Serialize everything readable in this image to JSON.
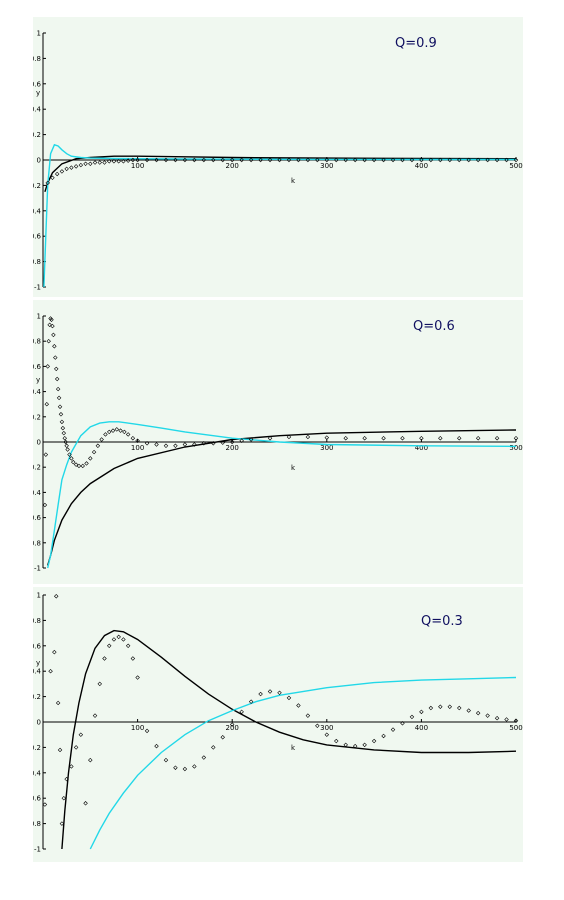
{
  "chart_data": [
    {
      "type": "line",
      "label": "Q=0.9",
      "xlabel": "k",
      "ylabel": "y",
      "xlim": [
        0,
        500
      ],
      "ylim": [
        -1,
        1
      ],
      "xticks": [
        "100",
        "200",
        "300",
        "400",
        "500"
      ],
      "yticks": [
        "1",
        "0.8",
        "0.6",
        "0.4",
        "0.2",
        "0",
        "-0.2",
        "-0.4",
        "-0.6",
        "-0.8",
        "-1"
      ],
      "series": [
        {
          "style": "solid",
          "color": "#000000",
          "x": [
            2,
            5,
            10,
            20,
            35,
            50,
            75,
            100,
            150,
            200,
            300,
            400,
            500
          ],
          "y": [
            -0.25,
            -0.18,
            -0.1,
            -0.03,
            0.01,
            0.02,
            0.03,
            0.03,
            0.025,
            0.02,
            0.015,
            0.012,
            0.01
          ]
        },
        {
          "style": "solid",
          "color": "#22d8e8",
          "x": [
            1,
            3,
            5,
            8,
            12,
            16,
            20,
            25,
            30,
            40,
            50,
            75,
            100,
            150,
            200,
            300,
            400,
            500
          ],
          "y": [
            -1,
            -0.6,
            -0.2,
            0.05,
            0.12,
            0.11,
            0.08,
            0.05,
            0.03,
            0.02,
            0.015,
            0.012,
            0.01,
            0.008,
            0.006,
            0.005,
            0.004,
            0.004
          ]
        },
        {
          "style": "points",
          "color": "#000000",
          "x": [
            5,
            10,
            15,
            20,
            25,
            30,
            35,
            40,
            45,
            50,
            55,
            60,
            65,
            70,
            75,
            80,
            85,
            90,
            95,
            100,
            110,
            120,
            130,
            140,
            150,
            160,
            170,
            180,
            190,
            200,
            210,
            220,
            230,
            240,
            250,
            260,
            270,
            280,
            290,
            300,
            310,
            320,
            330,
            340,
            350,
            360,
            370,
            380,
            390,
            400,
            410,
            420,
            430,
            440,
            450,
            460,
            470,
            480,
            490,
            500
          ],
          "y": [
            -0.18,
            -0.14,
            -0.11,
            -0.09,
            -0.07,
            -0.06,
            -0.05,
            -0.04,
            -0.03,
            -0.03,
            -0.02,
            -0.02,
            -0.02,
            -0.01,
            -0.01,
            -0.01,
            -0.01,
            -0.005,
            0,
            0,
            0,
            0,
            0,
            0,
            0,
            0,
            0,
            0,
            0,
            0,
            0,
            0,
            0,
            0,
            0,
            0,
            0,
            0,
            0,
            0,
            0,
            0,
            0,
            0,
            0,
            0,
            0,
            0,
            0,
            0,
            0,
            0,
            0,
            0,
            0,
            0,
            0,
            0,
            0,
            0
          ]
        }
      ]
    },
    {
      "type": "line",
      "label": "Q=0.6",
      "xlabel": "k",
      "ylabel": "y",
      "xlim": [
        0,
        500
      ],
      "ylim": [
        -1,
        1
      ],
      "xticks": [
        "100",
        "200",
        "300",
        "400",
        "500"
      ],
      "yticks": [
        "1",
        "0.8",
        "0.6",
        "0.4",
        "0.2",
        "0",
        "-0.2",
        "-0.4",
        "-0.6",
        "-0.8",
        "-1"
      ],
      "series": [
        {
          "style": "solid",
          "color": "#000000",
          "x": [
            5,
            8,
            12,
            20,
            30,
            40,
            50,
            75,
            100,
            150,
            200,
            250,
            300,
            400,
            500
          ],
          "y": [
            -0.98,
            -0.9,
            -0.78,
            -0.62,
            -0.49,
            -0.4,
            -0.33,
            -0.21,
            -0.13,
            -0.04,
            0.02,
            0.05,
            0.07,
            0.085,
            0.095
          ]
        },
        {
          "style": "solid",
          "color": "#22d8e8",
          "x": [
            5,
            8,
            12,
            16,
            20,
            25,
            30,
            40,
            50,
            60,
            70,
            80,
            100,
            125,
            150,
            200,
            250,
            300,
            400,
            500
          ],
          "y": [
            -1,
            -0.9,
            -0.7,
            -0.5,
            -0.3,
            -0.18,
            -0.08,
            0.05,
            0.12,
            0.15,
            0.16,
            0.16,
            0.14,
            0.11,
            0.08,
            0.03,
            0,
            -0.02,
            -0.03,
            -0.035
          ]
        },
        {
          "style": "points",
          "color": "#000000",
          "x": [
            2,
            3,
            4,
            5,
            6,
            7,
            8,
            9,
            10,
            11,
            12,
            13,
            14,
            15,
            16,
            17,
            18,
            19,
            20,
            21,
            22,
            23,
            24,
            25,
            26,
            28,
            30,
            32,
            35,
            38,
            42,
            46,
            50,
            54,
            58,
            62,
            66,
            70,
            74,
            78,
            82,
            86,
            90,
            95,
            100,
            110,
            120,
            130,
            140,
            150,
            160,
            170,
            180,
            190,
            200,
            210,
            220,
            240,
            260,
            280,
            300,
            320,
            340,
            360,
            380,
            400,
            420,
            440,
            460,
            480,
            500
          ],
          "y": [
            -0.5,
            -0.1,
            0.3,
            0.6,
            0.8,
            0.93,
            0.98,
            0.97,
            0.92,
            0.85,
            0.76,
            0.67,
            0.58,
            0.5,
            0.42,
            0.35,
            0.28,
            0.22,
            0.16,
            0.11,
            0.07,
            0.03,
            0,
            -0.03,
            -0.06,
            -0.1,
            -0.13,
            -0.16,
            -0.18,
            -0.19,
            -0.19,
            -0.17,
            -0.13,
            -0.08,
            -0.03,
            0.02,
            0.06,
            0.08,
            0.09,
            0.1,
            0.09,
            0.08,
            0.06,
            0.03,
            0.01,
            -0.01,
            -0.02,
            -0.03,
            -0.03,
            -0.02,
            -0.02,
            -0.01,
            -0.01,
            -0.005,
            0,
            0.01,
            0.02,
            0.03,
            0.04,
            0.04,
            0.035,
            0.03,
            0.03,
            0.03,
            0.03,
            0.03,
            0.03,
            0.03,
            0.03,
            0.03,
            0.03
          ]
        }
      ]
    },
    {
      "type": "line",
      "label": "Q=0.3",
      "xlabel": "k",
      "ylabel": "y",
      "xlim": [
        0,
        500
      ],
      "ylim": [
        -1,
        1
      ],
      "xticks": [
        "100",
        "200",
        "300",
        "400",
        "500"
      ],
      "yticks": [
        "1",
        "0.8",
        "0.6",
        "0.4",
        "0.2",
        "0",
        "-0.2",
        "-0.4",
        "-0.6",
        "-0.8",
        "-1"
      ],
      "series": [
        {
          "style": "solid",
          "color": "#000000",
          "x": [
            20,
            23,
            27,
            32,
            38,
            45,
            55,
            65,
            75,
            85,
            100,
            125,
            150,
            175,
            200,
            225,
            250,
            275,
            300,
            350,
            400,
            450,
            500
          ],
          "y": [
            -1,
            -0.7,
            -0.4,
            -0.1,
            0.15,
            0.38,
            0.58,
            0.68,
            0.72,
            0.71,
            0.65,
            0.51,
            0.36,
            0.22,
            0.1,
            0,
            -0.08,
            -0.14,
            -0.18,
            -0.22,
            -0.24,
            -0.24,
            -0.23
          ]
        },
        {
          "style": "solid",
          "color": "#22d8e8",
          "x": [
            50,
            60,
            70,
            85,
            100,
            125,
            150,
            175,
            200,
            225,
            250,
            300,
            350,
            400,
            450,
            500
          ],
          "y": [
            -1,
            -0.85,
            -0.72,
            -0.56,
            -0.42,
            -0.24,
            -0.1,
            0.01,
            0.09,
            0.16,
            0.21,
            0.27,
            0.31,
            0.33,
            0.34,
            0.35
          ]
        },
        {
          "style": "points",
          "color": "#000000",
          "x": [
            2,
            8,
            12,
            14,
            16,
            18,
            20,
            22,
            25,
            30,
            35,
            40,
            45,
            50,
            55,
            60,
            65,
            70,
            75,
            80,
            85,
            90,
            95,
            100,
            110,
            120,
            130,
            140,
            150,
            160,
            170,
            180,
            190,
            200,
            210,
            220,
            230,
            240,
            250,
            260,
            270,
            280,
            290,
            300,
            310,
            320,
            330,
            340,
            350,
            360,
            370,
            380,
            390,
            400,
            410,
            420,
            430,
            440,
            450,
            460,
            470,
            480,
            490,
            500
          ],
          "y": [
            -0.65,
            0.4,
            0.55,
            0.99,
            0.15,
            -0.22,
            -0.8,
            -0.6,
            -0.45,
            -0.35,
            -0.2,
            -0.1,
            -0.64,
            -0.3,
            0.05,
            0.3,
            0.5,
            0.6,
            0.65,
            0.67,
            0.65,
            0.6,
            0.5,
            0.35,
            -0.07,
            -0.19,
            -0.3,
            -0.36,
            -0.37,
            -0.35,
            -0.28,
            -0.2,
            -0.12,
            -0.02,
            0.08,
            0.16,
            0.22,
            0.24,
            0.23,
            0.19,
            0.13,
            0.05,
            -0.03,
            -0.1,
            -0.15,
            -0.18,
            -0.19,
            -0.18,
            -0.15,
            -0.11,
            -0.06,
            -0.01,
            0.04,
            0.08,
            0.11,
            0.12,
            0.12,
            0.11,
            0.09,
            0.07,
            0.05,
            0.03,
            0.02,
            0.01
          ]
        }
      ]
    }
  ]
}
